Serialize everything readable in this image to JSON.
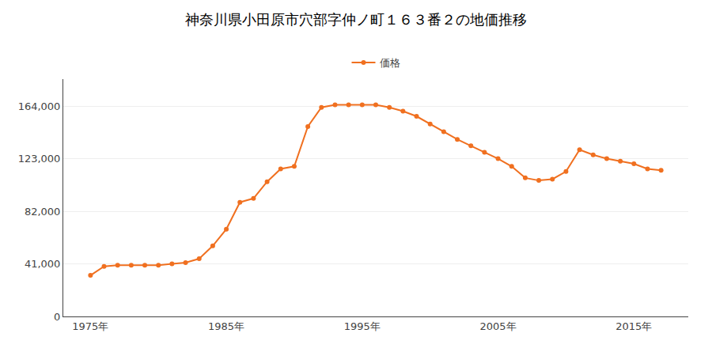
{
  "chart_data": {
    "type": "line",
    "title": "神奈川県小田原市穴部字仲ノ町１６３番２の地価推移",
    "x": [
      1975,
      1976,
      1977,
      1978,
      1979,
      1980,
      1981,
      1982,
      1983,
      1984,
      1985,
      1986,
      1987,
      1988,
      1989,
      1990,
      1991,
      1992,
      1993,
      1994,
      1995,
      1996,
      1997,
      1998,
      1999,
      2000,
      2001,
      2002,
      2003,
      2004,
      2005,
      2006,
      2007,
      2008,
      2009,
      2010,
      2011,
      2012,
      2013,
      2014,
      2015,
      2016,
      2017
    ],
    "series": [
      {
        "name": "価格",
        "color": "#f07020",
        "marker": "circle",
        "values": [
          32000,
          39000,
          40000,
          40000,
          40000,
          40000,
          41000,
          42000,
          45000,
          55000,
          68000,
          89000,
          92000,
          105000,
          115000,
          117000,
          148000,
          163000,
          165000,
          165000,
          165000,
          165000,
          163000,
          160000,
          156000,
          150000,
          144000,
          138000,
          133000,
          128000,
          123000,
          117000,
          108000,
          106000,
          107000,
          113000,
          130000,
          126000,
          123000,
          121000,
          119000,
          115000,
          114000
        ]
      }
    ],
    "xlim": [
      1973,
      2019
    ],
    "xticks": [
      {
        "value": 1975,
        "label": "1975年"
      },
      {
        "value": 1985,
        "label": "1985年"
      },
      {
        "value": 1995,
        "label": "1995年"
      },
      {
        "value": 2005,
        "label": "2005年"
      },
      {
        "value": 2015,
        "label": "2015年"
      }
    ],
    "ylim": [
      0,
      185000
    ],
    "yticks": [
      0,
      {
        "value": 41000,
        "label": "41,000"
      },
      {
        "value": 82000,
        "label": "82,000"
      },
      {
        "value": 123000,
        "label": "123,000"
      },
      {
        "value": 164000,
        "label": "164,000"
      }
    ],
    "grid": true,
    "legend": "top"
  }
}
